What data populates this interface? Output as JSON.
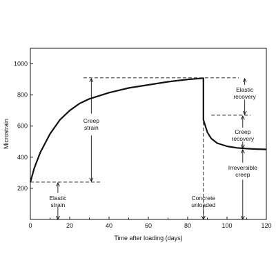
{
  "chart_data": {
    "type": "line",
    "title": "",
    "xlabel": "Time after loading (days)",
    "ylabel": "Microstrain",
    "xlim": [
      0,
      120
    ],
    "ylim": [
      0,
      1100
    ],
    "xticks": [
      "0",
      "20",
      "40",
      "60",
      "80",
      "100",
      "120"
    ],
    "yticks": [
      "200",
      "400",
      "600",
      "800",
      "1000"
    ],
    "grid": false,
    "series": [
      {
        "name": "",
        "points": [
          [
            0,
            240
          ],
          [
            2,
            330
          ],
          [
            5,
            430
          ],
          [
            10,
            550
          ],
          [
            15,
            640
          ],
          [
            20,
            700
          ],
          [
            25,
            745
          ],
          [
            30,
            775
          ],
          [
            40,
            815
          ],
          [
            50,
            845
          ],
          [
            60,
            865
          ],
          [
            70,
            885
          ],
          [
            80,
            900
          ],
          [
            88,
            908
          ],
          [
            88,
            640
          ],
          [
            90,
            560
          ],
          [
            92,
            520
          ],
          [
            95,
            490
          ],
          [
            100,
            470
          ],
          [
            105,
            460
          ],
          [
            110,
            455
          ],
          [
            115,
            452
          ],
          [
            120,
            450
          ]
        ]
      }
    ],
    "reference_lines": {
      "elastic_level": 240,
      "peak_level": 910,
      "recovery_level": 670,
      "unload_day": 88
    },
    "annotations": [
      {
        "lines": [
          "Creep",
          "strain"
        ]
      },
      {
        "lines": [
          "Elastic",
          "strain"
        ]
      },
      {
        "lines": [
          "Elastic",
          "recovery"
        ]
      },
      {
        "lines": [
          "Creep",
          "recovery"
        ]
      },
      {
        "lines": [
          "Irreversible",
          "creep"
        ]
      },
      {
        "lines": [
          "Concrete",
          "unloaded"
        ]
      }
    ]
  }
}
